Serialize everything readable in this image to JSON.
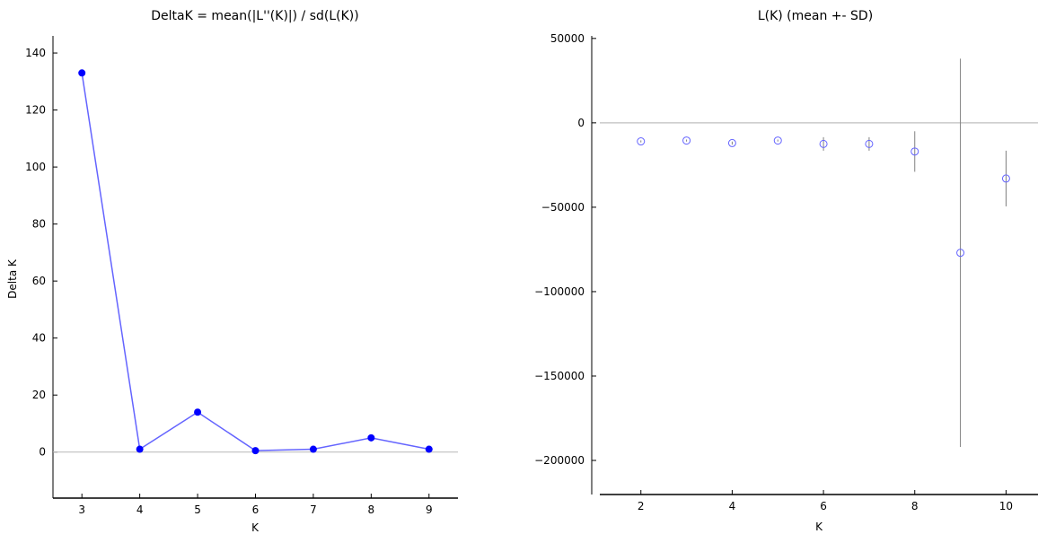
{
  "chart_data": [
    {
      "type": "line",
      "title": "DeltaK = mean(|L''(K)|) / sd(L(K))",
      "xlabel": "K",
      "ylabel": "Delta K",
      "xlim": [
        2.5,
        9.5
      ],
      "ylim": [
        -13,
        146
      ],
      "x_ticks": [
        3,
        4,
        5,
        6,
        7,
        8,
        9
      ],
      "y_ticks": [
        0,
        20,
        40,
        60,
        80,
        100,
        120,
        140
      ],
      "reference_line": 0,
      "grid": false,
      "series": [
        {
          "x": [
            3,
            4,
            5,
            6,
            7,
            8,
            9
          ],
          "values": [
            133,
            1,
            14,
            0.5,
            1,
            5,
            1
          ]
        }
      ],
      "colors": {
        "series": "#0000ff",
        "line": "#6464ff",
        "reference": "#bfbfbf"
      }
    },
    {
      "type": "scatter",
      "title": "L(K) (mean +- SD)",
      "xlabel": "K",
      "ylabel": "",
      "xlim": [
        1.1,
        10.7
      ],
      "ylim": [
        -217000,
        51500
      ],
      "x_ticks": [
        2,
        4,
        6,
        8,
        10
      ],
      "y_ticks": [
        50000,
        0,
        -50000,
        -100000,
        -150000,
        -200000
      ],
      "y_tick_labels": [
        "50000",
        "0",
        "−50000",
        "−100000",
        "−150000",
        "−200000"
      ],
      "reference_line": 0,
      "grid": false,
      "series": [
        {
          "x": [
            2,
            3,
            4,
            5,
            6,
            7,
            8,
            9,
            10
          ],
          "values": [
            -11000,
            -10500,
            -12000,
            -10500,
            -12500,
            -12500,
            -17000,
            -77000,
            -33000
          ],
          "error": [
            600,
            600,
            900,
            600,
            4000,
            4000,
            12000,
            115000,
            16500
          ]
        }
      ],
      "colors": {
        "marker": "#6464ff",
        "errorbar": "#808080",
        "reference": "#bfbfbf"
      }
    }
  ]
}
